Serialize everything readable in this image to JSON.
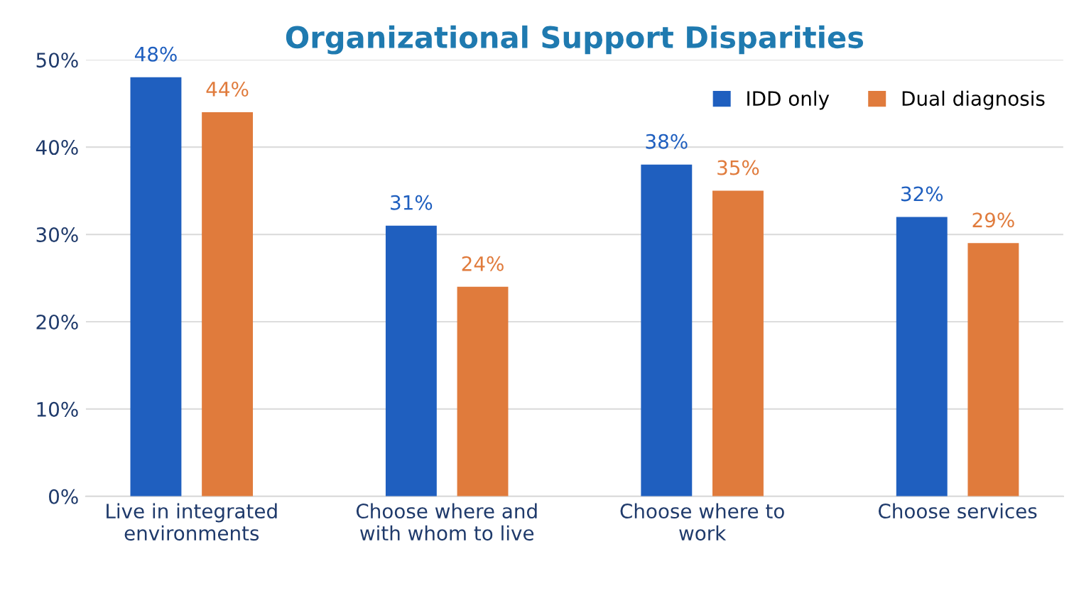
{
  "chart_data": {
    "type": "bar",
    "title": "Organizational Support Disparities",
    "categories": [
      "Live in integrated\nenvironments",
      "Choose where and\nwith whom to live",
      "Choose where to\nwork",
      "Choose services"
    ],
    "series": [
      {
        "name": "IDD only",
        "color": "#1f5fbf",
        "values": [
          48,
          31,
          38,
          32
        ]
      },
      {
        "name": "Dual diagnosis",
        "color": "#e07b3c",
        "values": [
          44,
          24,
          35,
          29
        ]
      }
    ],
    "ylim": [
      0,
      50
    ],
    "yticks": [
      {
        "value": 0,
        "label": "0%"
      },
      {
        "value": 10,
        "label": "10%"
      },
      {
        "value": 20,
        "label": "20%"
      },
      {
        "value": 30,
        "label": "30%"
      },
      {
        "value": 40,
        "label": "40%"
      },
      {
        "value": 50,
        "label": "50%"
      }
    ],
    "grid": "y",
    "legend": "top right",
    "value_labels": [
      [
        "48%",
        "31%",
        "38%",
        "32%"
      ],
      [
        "44%",
        "24%",
        "35%",
        "29%"
      ]
    ]
  }
}
